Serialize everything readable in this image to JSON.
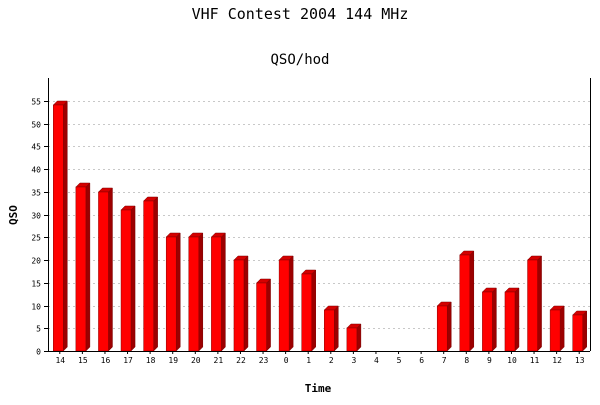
{
  "chart_data": {
    "type": "bar",
    "title": "VHF Contest 2004 144 MHz",
    "subtitle": "QSO/hod",
    "xlabel": "Time",
    "ylabel": "QSO",
    "categories": [
      "14",
      "15",
      "16",
      "17",
      "18",
      "19",
      "20",
      "21",
      "22",
      "23",
      "0",
      "1",
      "2",
      "3",
      "4",
      "5",
      "6",
      "7",
      "8",
      "9",
      "10",
      "11",
      "12",
      "13"
    ],
    "values": [
      54,
      36,
      35,
      31,
      33,
      25,
      25,
      25,
      20,
      15,
      20,
      17,
      9,
      5,
      0,
      0,
      0,
      10,
      21,
      13,
      13,
      20,
      9,
      8
    ],
    "yticks": [
      0,
      5,
      10,
      15,
      20,
      25,
      30,
      35,
      40,
      45,
      50,
      55
    ],
    "ylim": [
      0,
      60
    ],
    "grid": true,
    "bar_color": "#ff0000",
    "bar_side_color": "#9c0000",
    "bar_top_color": "#d40000"
  }
}
